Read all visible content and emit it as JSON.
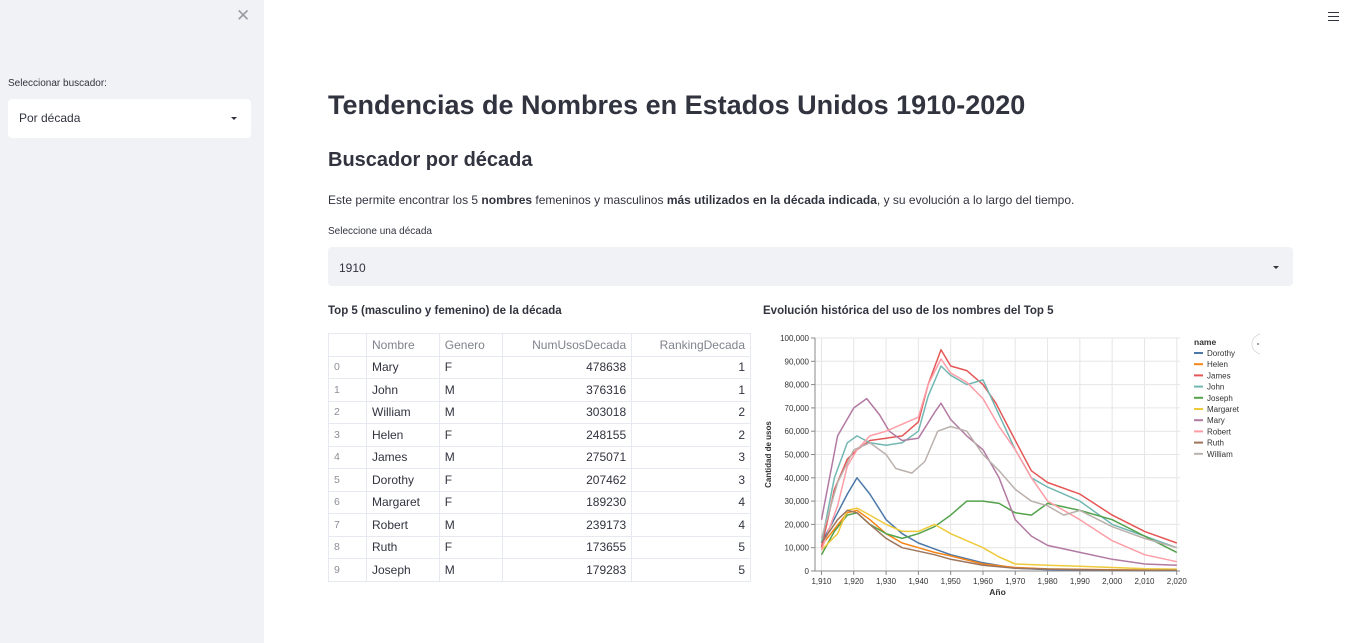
{
  "sidebar": {
    "close_icon": "close-icon",
    "selector_label": "Seleccionar buscador:",
    "selector_value": "Por década"
  },
  "header": {
    "menu_icon": "hamburger-icon"
  },
  "main": {
    "title": "Tendencias de Nombres en Estados Unidos 1910-2020",
    "subtitle": "Buscador por década",
    "description": {
      "p1": "Este permite encontrar los 5 ",
      "b1": "nombres",
      "p2": " femeninos y masculinos ",
      "b2": "más utilizados en la década indicada",
      "p3": ", y su evolución a lo largo del tiempo."
    },
    "decade_label": "Seleccione una década",
    "decade_value": "1910",
    "table_title": "Top 5 (masculino y femenino) de la década",
    "chart_title": "Evolución histórica del uso de los nombres del Top 5"
  },
  "table": {
    "columns": [
      "",
      "Nombre",
      "Genero",
      "NumUsosDecada",
      "RankingDecada"
    ],
    "rows": [
      [
        "0",
        "Mary",
        "F",
        "478638",
        "1"
      ],
      [
        "1",
        "John",
        "M",
        "376316",
        "1"
      ],
      [
        "2",
        "William",
        "M",
        "303018",
        "2"
      ],
      [
        "3",
        "Helen",
        "F",
        "248155",
        "2"
      ],
      [
        "4",
        "James",
        "M",
        "275071",
        "3"
      ],
      [
        "5",
        "Dorothy",
        "F",
        "207462",
        "3"
      ],
      [
        "6",
        "Margaret",
        "F",
        "189230",
        "4"
      ],
      [
        "7",
        "Robert",
        "M",
        "239173",
        "4"
      ],
      [
        "8",
        "Ruth",
        "F",
        "173655",
        "5"
      ],
      [
        "9",
        "Joseph",
        "M",
        "179283",
        "5"
      ]
    ]
  },
  "chart_data": {
    "type": "line",
    "xlabel": "Año",
    "ylabel": "Cantidad de usos",
    "xlim": [
      1908,
      2021
    ],
    "ylim": [
      0,
      100000
    ],
    "xticks": [
      1910,
      1920,
      1930,
      1940,
      1950,
      1960,
      1970,
      1980,
      1990,
      2000,
      2010,
      2020
    ],
    "xtick_labels": [
      "1,910",
      "1,920",
      "1,930",
      "1,940",
      "1,950",
      "1,960",
      "1,970",
      "1,980",
      "1,990",
      "2,000",
      "2,010",
      "2,020"
    ],
    "yticks": [
      0,
      10000,
      20000,
      30000,
      40000,
      50000,
      60000,
      70000,
      80000,
      90000,
      100000
    ],
    "ytick_labels": [
      "0",
      "10,000",
      "20,000",
      "30,000",
      "40,000",
      "50,000",
      "60,000",
      "70,000",
      "80,000",
      "90,000",
      "100,000"
    ],
    "grid": true,
    "legend_title": "name",
    "legend_position": "right",
    "series": [
      {
        "name": "Dorothy",
        "color": "#4c78a8",
        "x": [
          1910,
          1915,
          1918,
          1921,
          1925,
          1930,
          1935,
          1940,
          1945,
          1950,
          1960,
          1970,
          1980,
          2000,
          2020
        ],
        "y": [
          12000,
          25000,
          33000,
          40000,
          33000,
          22000,
          16000,
          12000,
          9500,
          7000,
          3500,
          1200,
          600,
          300,
          200
        ]
      },
      {
        "name": "Helen",
        "color": "#f58518",
        "x": [
          1910,
          1914,
          1918,
          1921,
          1925,
          1930,
          1935,
          1940,
          1945,
          1950,
          1960,
          1970,
          1980,
          2000,
          2020
        ],
        "y": [
          11000,
          18000,
          25000,
          26000,
          22000,
          16000,
          12000,
          10000,
          8000,
          6500,
          3000,
          1500,
          900,
          500,
          300
        ]
      },
      {
        "name": "James",
        "color": "#e45756",
        "x": [
          1910,
          1914,
          1918,
          1921,
          1925,
          1930,
          1935,
          1940,
          1943,
          1947,
          1950,
          1955,
          1960,
          1964,
          1970,
          1975,
          1980,
          1990,
          2000,
          2010,
          2020
        ],
        "y": [
          10000,
          35000,
          48000,
          52000,
          56000,
          57000,
          58000,
          64000,
          80000,
          95000,
          88000,
          86000,
          80000,
          72000,
          56000,
          43000,
          38000,
          33000,
          24000,
          17000,
          12000
        ]
      },
      {
        "name": "John",
        "color": "#72b7b2",
        "x": [
          1910,
          1914,
          1918,
          1921,
          1925,
          1930,
          1935,
          1940,
          1943,
          1947,
          1950,
          1955,
          1960,
          1964,
          1970,
          1975,
          1980,
          1990,
          2000,
          2010,
          2020
        ],
        "y": [
          12000,
          40000,
          55000,
          58000,
          55000,
          54000,
          55000,
          60000,
          75000,
          88000,
          84000,
          80000,
          82000,
          70000,
          52000,
          40000,
          36000,
          30000,
          20000,
          15000,
          10000
        ]
      },
      {
        "name": "Joseph",
        "color": "#54a24b",
        "x": [
          1910,
          1914,
          1918,
          1921,
          1925,
          1930,
          1935,
          1940,
          1945,
          1950,
          1955,
          1960,
          1965,
          1970,
          1975,
          1980,
          1990,
          2000,
          2010,
          2020
        ],
        "y": [
          7000,
          17000,
          24000,
          25000,
          20000,
          16000,
          14000,
          16000,
          19000,
          24000,
          30000,
          30000,
          29000,
          25000,
          24000,
          29000,
          26000,
          22000,
          15000,
          8000
        ]
      },
      {
        "name": "Margaret",
        "color": "#eeca3b",
        "x": [
          1910,
          1915,
          1918,
          1921,
          1925,
          1930,
          1935,
          1940,
          1945,
          1950,
          1955,
          1960,
          1965,
          1970,
          1980,
          1990,
          2000,
          2010,
          2020
        ],
        "y": [
          9000,
          16000,
          26000,
          27000,
          24000,
          20000,
          17000,
          17000,
          20000,
          16000,
          13000,
          10000,
          6000,
          3000,
          2500,
          2000,
          1500,
          1000,
          800
        ]
      },
      {
        "name": "Mary",
        "color": "#b279a2",
        "x": [
          1910,
          1915,
          1920,
          1924,
          1928,
          1931,
          1935,
          1940,
          1945,
          1947,
          1950,
          1955,
          1960,
          1965,
          1970,
          1975,
          1980,
          1990,
          2000,
          2010,
          2020
        ],
        "y": [
          22000,
          58000,
          70000,
          74000,
          67000,
          60000,
          56000,
          57000,
          68000,
          72000,
          65000,
          58000,
          52000,
          40000,
          22000,
          15000,
          11000,
          8000,
          5000,
          3000,
          2500
        ]
      },
      {
        "name": "Robert",
        "color": "#ff9da6",
        "x": [
          1910,
          1915,
          1918,
          1921,
          1925,
          1930,
          1935,
          1940,
          1943,
          1947,
          1950,
          1955,
          1960,
          1965,
          1970,
          1975,
          1980,
          1990,
          2000,
          2010,
          2020
        ],
        "y": [
          9000,
          28000,
          45000,
          52000,
          58000,
          60000,
          63000,
          66000,
          80000,
          91000,
          85000,
          81000,
          74000,
          62000,
          52000,
          40000,
          30000,
          22000,
          13000,
          7000,
          4000
        ]
      },
      {
        "name": "Ruth",
        "color": "#9d755d",
        "x": [
          1910,
          1915,
          1918,
          1921,
          1925,
          1930,
          1935,
          1940,
          1945,
          1950,
          1960,
          1970,
          1980,
          2000,
          2020
        ],
        "y": [
          12000,
          22000,
          26000,
          25000,
          20000,
          14000,
          10000,
          8500,
          7000,
          5000,
          2500,
          1200,
          800,
          400,
          300
        ]
      },
      {
        "name": "William",
        "color": "#bab0ac",
        "x": [
          1910,
          1915,
          1920,
          1925,
          1930,
          1933,
          1938,
          1942,
          1946,
          1950,
          1955,
          1960,
          1965,
          1970,
          1975,
          1980,
          1985,
          1990,
          2000,
          2010,
          2020
        ],
        "y": [
          14000,
          38000,
          52000,
          55000,
          50000,
          44000,
          42000,
          47000,
          60000,
          62000,
          60000,
          50000,
          43000,
          35000,
          30000,
          28000,
          24000,
          26000,
          19000,
          14000,
          10000
        ]
      }
    ]
  }
}
